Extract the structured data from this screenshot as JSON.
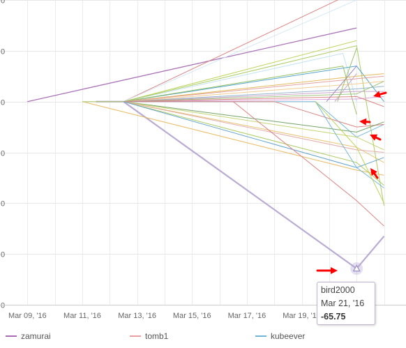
{
  "chart_data": {
    "type": "line",
    "title": "",
    "xlabel": "",
    "ylabel": "",
    "x_tick_labels": [
      "Mar 09, '16",
      "Mar 11, '16",
      "Mar 13, '16",
      "Mar 15, '16",
      "Mar 17, '16",
      "Mar 19, '16",
      "'16"
    ],
    "x_tick_days": [
      9,
      11,
      13,
      15,
      17,
      19,
      21
    ],
    "y_tick_labels": [
      "0",
      "0",
      "0",
      "0",
      "0",
      "0",
      "0"
    ],
    "ylim": [
      -80,
      40
    ],
    "xlim": [
      8,
      22.8
    ],
    "grid": true,
    "legend": {
      "placement": "bottom",
      "entries": [
        {
          "name": "zamurai",
          "color": "#a66bb3"
        },
        {
          "name": "tomb1",
          "color": "#e8a0a0"
        },
        {
          "name": "kubeever",
          "color": "#6fb6d6"
        }
      ]
    },
    "tooltip": {
      "series": "bird2000",
      "date": "Mar 21, '16",
      "value": "-65.75"
    },
    "series": [
      {
        "color": "#b5a7d0",
        "width": 2.2,
        "x": [
          11.5,
          12.5,
          21.0,
          22.0
        ],
        "y": [
          0,
          0,
          -65.75,
          -53
        ]
      },
      {
        "color": "#a66bb3",
        "width": 1.3,
        "x": [
          9.0,
          21.0
        ],
        "y": [
          0,
          29
        ]
      },
      {
        "color": "#d98080",
        "width": 1.0,
        "x": [
          12.5,
          20.5
        ],
        "y": [
          0,
          41
        ]
      },
      {
        "color": "#d3e7f3",
        "width": 1.0,
        "x": [
          12.5,
          21.0,
          22.0
        ],
        "y": [
          0,
          40,
          41
        ]
      },
      {
        "color": "#bfe0ef",
        "width": 1.0,
        "x": [
          12.5,
          20.5,
          21.0
        ],
        "y": [
          0,
          19,
          0
        ]
      },
      {
        "color": "#b8d14d",
        "width": 1.0,
        "x": [
          12.5,
          21.0
        ],
        "y": [
          0,
          24
        ]
      },
      {
        "color": "#a8c95a",
        "width": 1.0,
        "x": [
          12.5,
          21.0,
          22.0
        ],
        "y": [
          0,
          22,
          -41
        ]
      },
      {
        "color": "#4a9ec8",
        "width": 1.0,
        "x": [
          12.5,
          21.0,
          22.0
        ],
        "y": [
          0,
          14,
          0
        ]
      },
      {
        "color": "#8fbe5a",
        "width": 1.0,
        "x": [
          12.5,
          20.5,
          21.0
        ],
        "y": [
          0,
          14,
          -5
        ]
      },
      {
        "color": "#e1b74f",
        "width": 1.0,
        "x": [
          12.5,
          21.0,
          22.0
        ],
        "y": [
          0,
          10,
          11
        ]
      },
      {
        "color": "#e29b9b",
        "width": 1.0,
        "x": [
          12.5,
          21.0,
          22.0
        ],
        "y": [
          0,
          9,
          10
        ]
      },
      {
        "color": "#f0c98a",
        "width": 1.0,
        "x": [
          12.5,
          21.0,
          22.0
        ],
        "y": [
          0,
          7,
          8
        ]
      },
      {
        "color": "#8fb0c9",
        "width": 1.0,
        "x": [
          12.5,
          21.0,
          22.0
        ],
        "y": [
          0,
          5,
          6
        ]
      },
      {
        "color": "#c8a0c8",
        "width": 1.0,
        "x": [
          12.5,
          21.0,
          22.0
        ],
        "y": [
          0,
          4,
          4
        ]
      },
      {
        "color": "#9bc47a",
        "width": 1.0,
        "x": [
          12.5,
          21.0,
          22.0
        ],
        "y": [
          0,
          3,
          8
        ]
      },
      {
        "color": "#d9a0d9",
        "width": 1.0,
        "x": [
          12.5,
          21.0,
          22.0
        ],
        "y": [
          0,
          1,
          2
        ]
      },
      {
        "color": "#d98080",
        "width": 1.0,
        "x": [
          12.5,
          21.0,
          22.0
        ],
        "y": [
          0,
          2,
          -2
        ]
      },
      {
        "color": "#6fb6d6",
        "width": 1.0,
        "x": [
          12.5,
          19.5,
          21.0,
          22.0
        ],
        "y": [
          0,
          0,
          -14,
          -9
        ]
      },
      {
        "color": "#d98080",
        "width": 1.0,
        "x": [
          12.5,
          18.0,
          21.0,
          22.0
        ],
        "y": [
          0,
          0,
          -10,
          -9
        ]
      },
      {
        "color": "#6a9e5e",
        "width": 1.0,
        "x": [
          12.5,
          21.0,
          22.0
        ],
        "y": [
          0,
          -12,
          -8
        ]
      },
      {
        "color": "#c0d26a",
        "width": 1.0,
        "x": [
          12.5,
          21.0,
          22.0
        ],
        "y": [
          0,
          -14,
          -19
        ]
      },
      {
        "color": "#e6c26a",
        "width": 1.0,
        "x": [
          12.5,
          21.0,
          22.0
        ],
        "y": [
          0,
          -18,
          -24
        ]
      },
      {
        "color": "#a8c95a",
        "width": 1.0,
        "x": [
          12.5,
          21.0,
          22.0
        ],
        "y": [
          0,
          -24,
          -33
        ]
      },
      {
        "color": "#e0a9a9",
        "width": 1.0,
        "x": [
          12.5,
          21.0,
          22.0
        ],
        "y": [
          0,
          -19,
          -20
        ]
      },
      {
        "color": "#5aa0c8",
        "width": 1.0,
        "x": [
          12.5,
          21.0,
          22.0
        ],
        "y": [
          0,
          -26,
          -22
        ]
      },
      {
        "color": "#e8b960",
        "width": 1.0,
        "x": [
          11.0,
          21.0,
          22.0
        ],
        "y": [
          0,
          -27,
          -29
        ]
      },
      {
        "color": "#a8c95a",
        "width": 1.0,
        "x": [
          11.0,
          12.5
        ],
        "y": [
          0,
          0
        ]
      },
      {
        "color": "#d98080",
        "width": 1.0,
        "x": [
          16.5,
          21.0,
          22.0
        ],
        "y": [
          0,
          -39,
          -49
        ]
      },
      {
        "color": "#6fb6d6",
        "width": 1.0,
        "x": [
          19.5,
          21.0,
          22.0
        ],
        "y": [
          0,
          -26,
          -34
        ]
      },
      {
        "color": "#b8d14d",
        "width": 1.0,
        "x": [
          19.5,
          21.0,
          22.0
        ],
        "y": [
          0,
          -18,
          -40
        ]
      },
      {
        "color": "#9e7fbf",
        "width": 1.0,
        "x": [
          19.9,
          21.0
        ],
        "y": [
          0,
          14
        ]
      },
      {
        "color": "#c8a0c8",
        "width": 1.0,
        "x": [
          20.2,
          21.0
        ],
        "y": [
          0,
          11
        ]
      },
      {
        "color": "#8fbe5a",
        "width": 1.0,
        "x": [
          20.3,
          21.0
        ],
        "y": [
          0,
          21
        ]
      }
    ]
  },
  "annotations": {
    "arrow_color": "#ff0000"
  }
}
